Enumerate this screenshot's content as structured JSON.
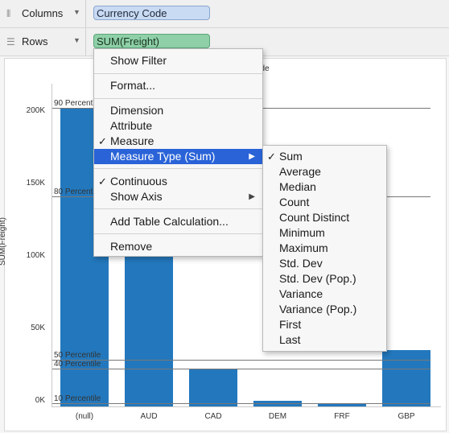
{
  "shelves": {
    "columns": {
      "label": "Columns",
      "pill": "Currency Code"
    },
    "rows": {
      "label": "Rows",
      "pill": "SUM(Freight)"
    }
  },
  "view": {
    "column_header": "ode",
    "y_title": "SUM(Freight)"
  },
  "context_menu": {
    "items": {
      "show_filter": "Show Filter",
      "format": "Format...",
      "dimension": "Dimension",
      "attribute": "Attribute",
      "measure": "Measure",
      "measure_type": "Measure Type (Sum)",
      "continuous": "Continuous",
      "show_axis": "Show Axis",
      "add_table_calc": "Add Table Calculation...",
      "remove": "Remove"
    },
    "check": "✓",
    "submenu_arrow": "▶"
  },
  "measure_type_menu": {
    "items": [
      "Sum",
      "Average",
      "Median",
      "Count",
      "Count Distinct",
      "Minimum",
      "Maximum",
      "Std. Dev",
      "Std. Dev (Pop.)",
      "Variance",
      "Variance (Pop.)",
      "First",
      "Last"
    ],
    "checked": "Sum"
  },
  "chart_data": {
    "type": "bar",
    "categories": [
      "(null)",
      "AUD",
      "CAD",
      "DEM",
      "FRF",
      "GBP"
    ],
    "values": [
      206000,
      120000,
      26000,
      4000,
      2000,
      39000
    ],
    "ylabel": "SUM(Freight)",
    "ylim": [
      -10000,
      215000
    ],
    "yticks": [
      "0K",
      "50K",
      "100K",
      "150K",
      "200K"
    ],
    "ytick_values": [
      0,
      50000,
      100000,
      150000,
      200000
    ],
    "bar_color": "#2378bd",
    "reference_lines": [
      {
        "label": "90 Percentile",
        "value": 206000
      },
      {
        "label": "80 Percentile",
        "value": 145000
      },
      {
        "label": "50 Percentile",
        "value": 32500
      },
      {
        "label": "40 Percentile",
        "value": 26000
      },
      {
        "label": "10 Percentile",
        "value": 2000
      }
    ]
  }
}
